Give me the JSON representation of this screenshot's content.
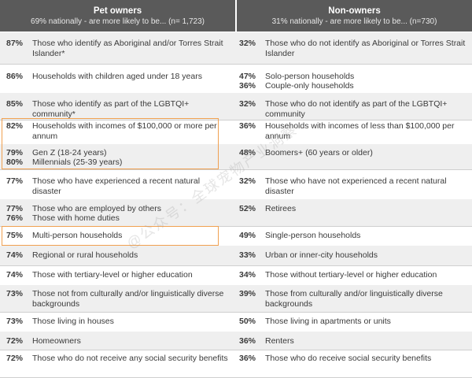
{
  "header": {
    "left_title": "Pet owners",
    "left_sub": "69% nationally - are more likely to be... (n= 1,723)",
    "right_title": "Non-owners",
    "right_sub": "31% nationally - are more likely to be... (n=730)"
  },
  "rows": [
    {
      "lp1": "87%",
      "ll": "Those who identify as Aboriginal and/or Torres Strait Islander*",
      "rp1": "32%",
      "rl": "Those who do not identify as Aboriginal or Torres Strait Islander"
    },
    {
      "lp1": "86%",
      "ll": "Households with children aged under 18 years",
      "rp1": "47%",
      "rl1": "Solo-person households",
      "rp2": "36%",
      "rl2": "Couple-only households"
    },
    {
      "lp1": "85%",
      "ll": "Those who identify as part of the LGBTQI+ community*",
      "rp1": "32%",
      "rl": "Those who do not identify as part of the LGBTQI+ community"
    },
    {
      "lp1": "82%",
      "ll": "Households with incomes of $100,000 or more per annum",
      "rp1": "36%",
      "rl": "Households with incomes of less than $100,000 per annum"
    },
    {
      "lp1": "79%",
      "ll1": "Gen Z (18-24 years)",
      "lp2": "80%",
      "ll2": "Millennials (25-39 years)",
      "rp1": "48%",
      "rl": "Boomers+ (60 years or older)"
    },
    {
      "lp1": "77%",
      "ll": "Those who have experienced a recent natural disaster",
      "rp1": "32%",
      "rl": "Those who have not experienced a recent natural disaster"
    },
    {
      "lp1": "77%",
      "ll1": "Those who are employed by others",
      "lp2": "76%",
      "ll2": "Those with home duties",
      "rp1": "52%",
      "rl": "Retirees"
    },
    {
      "lp1": "75%",
      "ll": "Multi-person households",
      "rp1": "49%",
      "rl": "Single-person households"
    },
    {
      "lp1": "74%",
      "ll": "Regional or rural households",
      "rp1": "33%",
      "rl": "Urban or inner-city households"
    },
    {
      "lp1": "74%",
      "ll": "Those with tertiary-level or higher education",
      "rp1": "34%",
      "rl": "Those without tertiary-level or higher education"
    },
    {
      "lp1": "73%",
      "ll": "Those not from culturally and/or linguistically diverse backgrounds",
      "rp1": "39%",
      "rl": "Those from culturally and/or linguistically diverse backgrounds"
    },
    {
      "lp1": "73%",
      "ll": "Those living in houses",
      "rp1": "50%",
      "rl": "Those living in apartments or units"
    },
    {
      "lp1": "72%",
      "ll": "Homeowners",
      "rp1": "36%",
      "rl": "Renters"
    },
    {
      "lp1": "72%",
      "ll": "Those who do not receive any social security benefits",
      "rp1": "36%",
      "rl": "Those who do receive social security benefits"
    }
  ],
  "watermark": "@公众号：全球宠物产业洞察",
  "colors": {
    "header_bg": "#5a5a5a",
    "alt_row_bg": "#efefef",
    "highlight": "#f0a050"
  }
}
